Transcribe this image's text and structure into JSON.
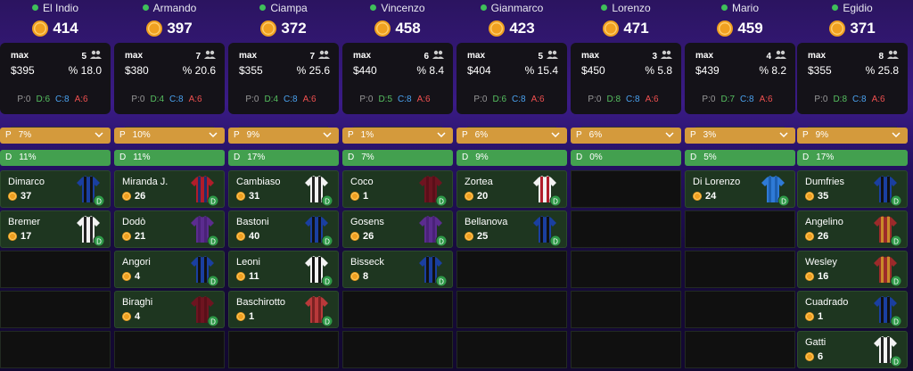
{
  "max_label": "max",
  "columns": [
    {
      "name": "El Indio",
      "credits": 414,
      "slots": 5,
      "max_bid": "$395",
      "pct": "% 18.0",
      "counts": [
        {
          "label": "P:",
          "value": 0
        },
        {
          "label": "D:",
          "value": 6
        },
        {
          "label": "C:",
          "value": 8
        },
        {
          "label": "A:",
          "value": 6
        }
      ],
      "p_bar": {
        "role": "P",
        "pct": "7%"
      },
      "d_bar": {
        "role": "D",
        "pct": "11%"
      },
      "players": [
        {
          "name": "Dimarco",
          "price": 37,
          "role": "D",
          "kit": [
            "#1a3fa0",
            "#111111"
          ]
        },
        {
          "name": "Bremer",
          "price": 17,
          "role": "D",
          "kit": [
            "#f2f2f2",
            "#222222"
          ]
        }
      ]
    },
    {
      "name": "Armando",
      "credits": 397,
      "slots": 7,
      "max_bid": "$380",
      "pct": "% 20.6",
      "counts": [
        {
          "label": "P:",
          "value": 0
        },
        {
          "label": "D:",
          "value": 4
        },
        {
          "label": "C:",
          "value": 8
        },
        {
          "label": "A:",
          "value": 6
        }
      ],
      "p_bar": {
        "role": "P",
        "pct": "10%"
      },
      "d_bar": {
        "role": "D",
        "pct": "11%"
      },
      "players": [
        {
          "name": "Miranda J.",
          "price": 26,
          "role": "D",
          "kit": [
            "#b01d2a",
            "#1c2f6b"
          ]
        },
        {
          "name": "Dodò",
          "price": 21,
          "role": "D",
          "kit": [
            "#5b2c8f",
            "#4a2278"
          ]
        },
        {
          "name": "Angori",
          "price": 4,
          "role": "D",
          "kit": [
            "#1a3fa0",
            "#111111"
          ]
        },
        {
          "name": "Biraghi",
          "price": 4,
          "role": "D",
          "kit": [
            "#6e1420",
            "#5a0f19"
          ]
        }
      ]
    },
    {
      "name": "Ciampa",
      "credits": 372,
      "slots": 7,
      "max_bid": "$355",
      "pct": "% 25.6",
      "counts": [
        {
          "label": "P:",
          "value": 0
        },
        {
          "label": "D:",
          "value": 4
        },
        {
          "label": "C:",
          "value": 8
        },
        {
          "label": "A:",
          "value": 6
        }
      ],
      "p_bar": {
        "role": "P",
        "pct": "9%"
      },
      "d_bar": {
        "role": "D",
        "pct": "17%"
      },
      "players": [
        {
          "name": "Cambiaso",
          "price": 31,
          "role": "D",
          "kit": [
            "#f2f2f2",
            "#222222"
          ]
        },
        {
          "name": "Bastoni",
          "price": 40,
          "role": "D",
          "kit": [
            "#1a3fa0",
            "#111111"
          ]
        },
        {
          "name": "Leoni",
          "price": 11,
          "role": "D",
          "kit": [
            "#f2f2f2",
            "#111111"
          ]
        },
        {
          "name": "Baschirotto",
          "price": 1,
          "role": "D",
          "kit": [
            "#b8393a",
            "#7a2222"
          ]
        }
      ]
    },
    {
      "name": "Vincenzo",
      "credits": 458,
      "slots": 6,
      "max_bid": "$440",
      "pct": "% 8.4",
      "counts": [
        {
          "label": "P:",
          "value": 0
        },
        {
          "label": "D:",
          "value": 5
        },
        {
          "label": "C:",
          "value": 8
        },
        {
          "label": "A:",
          "value": 6
        }
      ],
      "p_bar": {
        "role": "P",
        "pct": "1%"
      },
      "d_bar": {
        "role": "D",
        "pct": "7%"
      },
      "players": [
        {
          "name": "Coco",
          "price": 1,
          "role": "D",
          "kit": [
            "#6e1420",
            "#5a0f19"
          ]
        },
        {
          "name": "Gosens",
          "price": 26,
          "role": "D",
          "kit": [
            "#5b2c8f",
            "#4a2278"
          ]
        },
        {
          "name": "Bisseck",
          "price": 8,
          "role": "D",
          "kit": [
            "#1a3fa0",
            "#111111"
          ]
        }
      ]
    },
    {
      "name": "Gianmarco",
      "credits": 423,
      "slots": 5,
      "max_bid": "$404",
      "pct": "% 15.4",
      "counts": [
        {
          "label": "P:",
          "value": 0
        },
        {
          "label": "D:",
          "value": 6
        },
        {
          "label": "C:",
          "value": 8
        },
        {
          "label": "A:",
          "value": 6
        }
      ],
      "p_bar": {
        "role": "P",
        "pct": "6%"
      },
      "d_bar": {
        "role": "D",
        "pct": "9%"
      },
      "players": [
        {
          "name": "Zortea",
          "price": 20,
          "role": "D",
          "kit": [
            "#f2f2f2",
            "#b01d2a"
          ]
        },
        {
          "name": "Bellanova",
          "price": 25,
          "role": "D",
          "kit": [
            "#1a3fa0",
            "#111111"
          ]
        }
      ]
    },
    {
      "name": "Lorenzo",
      "credits": 471,
      "slots": 3,
      "max_bid": "$450",
      "pct": "% 5.8",
      "counts": [
        {
          "label": "P:",
          "value": 0
        },
        {
          "label": "D:",
          "value": 8
        },
        {
          "label": "C:",
          "value": 8
        },
        {
          "label": "A:",
          "value": 6
        }
      ],
      "p_bar": {
        "role": "P",
        "pct": "6%"
      },
      "d_bar": {
        "role": "D",
        "pct": "0%"
      },
      "players": []
    },
    {
      "name": "Mario",
      "credits": 459,
      "slots": 4,
      "max_bid": "$439",
      "pct": "% 8.2",
      "counts": [
        {
          "label": "P:",
          "value": 0
        },
        {
          "label": "D:",
          "value": 7
        },
        {
          "label": "C:",
          "value": 8
        },
        {
          "label": "A:",
          "value": 6
        }
      ],
      "p_bar": {
        "role": "P",
        "pct": "3%"
      },
      "d_bar": {
        "role": "D",
        "pct": "5%"
      },
      "players": [
        {
          "name": "Di Lorenzo",
          "price": 24,
          "role": "D",
          "kit": [
            "#2f7ad6",
            "#1d5fb0"
          ]
        }
      ]
    },
    {
      "name": "Egidio",
      "credits": 371,
      "slots": 8,
      "max_bid": "$355",
      "pct": "% 25.8",
      "counts": [
        {
          "label": "P:",
          "value": 0
        },
        {
          "label": "D:",
          "value": 8
        },
        {
          "label": "C:",
          "value": 8
        },
        {
          "label": "A:",
          "value": 6
        }
      ],
      "p_bar": {
        "role": "P",
        "pct": "9%"
      },
      "d_bar": {
        "role": "D",
        "pct": "17%"
      },
      "players": [
        {
          "name": "Dumfries",
          "price": 35,
          "role": "D",
          "kit": [
            "#1a3fa0",
            "#111111"
          ]
        },
        {
          "name": "Angelino",
          "price": 26,
          "role": "D",
          "kit": [
            "#9c2a2a",
            "#c98a2a"
          ]
        },
        {
          "name": "Wesley",
          "price": 16,
          "role": "D",
          "kit": [
            "#9c2a2a",
            "#c98a2a"
          ]
        },
        {
          "name": "Cuadrado",
          "price": 1,
          "role": "D",
          "kit": [
            "#1a3fa0",
            "#111111"
          ]
        },
        {
          "name": "Gatti",
          "price": 6,
          "role": "D",
          "kit": [
            "#f2f2f2",
            "#222222"
          ]
        }
      ]
    }
  ]
}
